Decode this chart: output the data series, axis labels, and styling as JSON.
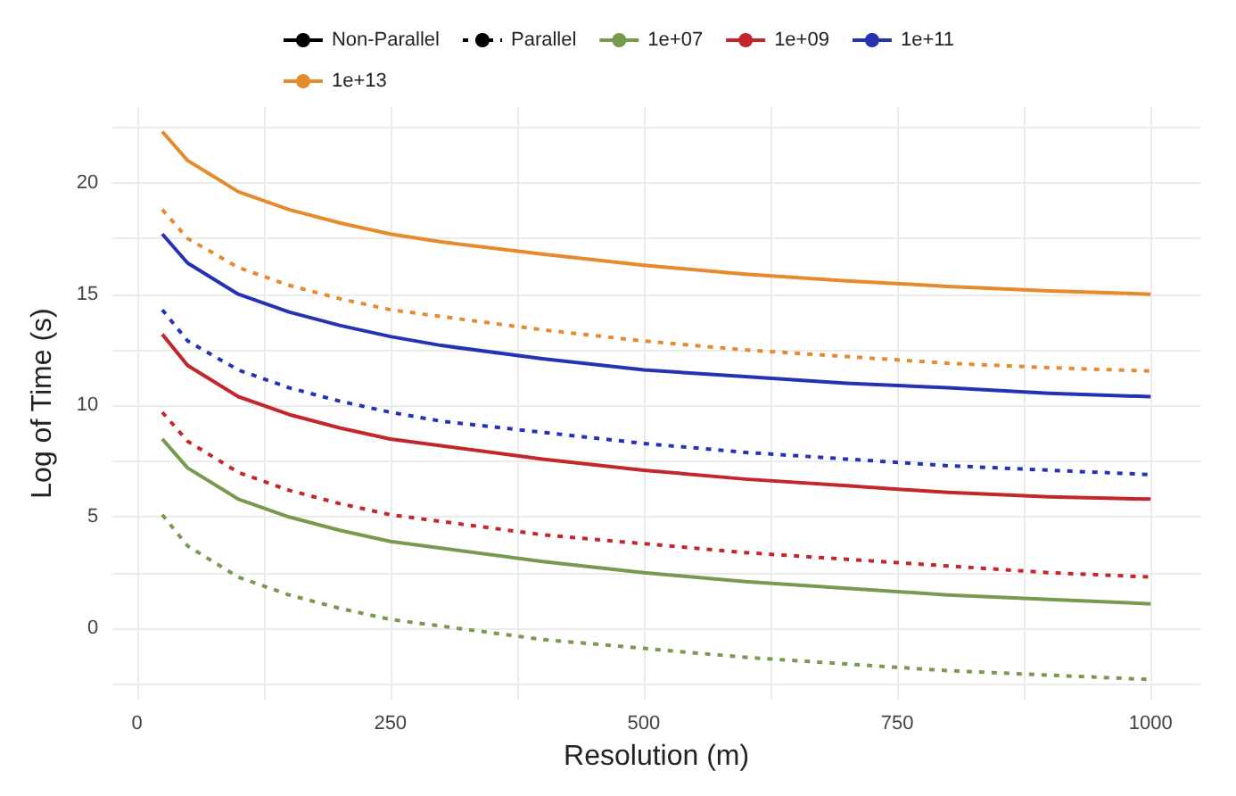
{
  "chart_data": {
    "type": "line",
    "xlabel": "Resolution (m)",
    "ylabel": "Log of Time (s)",
    "x": [
      25,
      50,
      100,
      150,
      200,
      250,
      300,
      400,
      500,
      600,
      700,
      800,
      900,
      1000
    ],
    "xlim": [
      -24,
      1049
    ],
    "xticks": [
      0,
      {
        "value": 125,
        "label": null
      },
      250,
      {
        "value": 375,
        "label": null
      },
      500,
      {
        "value": 625,
        "label": null
      },
      750,
      {
        "value": 875,
        "label": null
      },
      1000
    ],
    "ylim": [
      -3.2,
      23.4
    ],
    "yticks": [
      {
        "value": -2.5,
        "label": null
      },
      0,
      {
        "value": 2.5,
        "label": null
      },
      5,
      {
        "value": 7.5,
        "label": null
      },
      10,
      {
        "value": 12.5,
        "label": null
      },
      15,
      {
        "value": 17.5,
        "label": null
      },
      20,
      {
        "value": 22.5,
        "label": null
      }
    ],
    "grid": true,
    "legend": "top",
    "marker": "none",
    "series": [
      {
        "name": "Non-Parallel",
        "color": "#000000",
        "line_style": "solid",
        "values": [
          null,
          null,
          null,
          null,
          null,
          null,
          null,
          null,
          null,
          null,
          null,
          null,
          null,
          null
        ]
      },
      {
        "name": "Parallel",
        "color": "#000000",
        "line_style": "dotted",
        "values": [
          null,
          null,
          null,
          null,
          null,
          null,
          null,
          null,
          null,
          null,
          null,
          null,
          null,
          null
        ]
      },
      {
        "name": "1e+07",
        "color": "#789a4e",
        "line_style": "solid",
        "values": [
          8.5,
          7.2,
          5.8,
          5.0,
          4.4,
          3.9,
          3.6,
          3.0,
          2.5,
          2.1,
          1.8,
          1.5,
          1.3,
          1.1
        ]
      },
      {
        "name": "1e+09",
        "color": "#c3262b",
        "line_style": "solid",
        "values": [
          13.2,
          11.8,
          10.4,
          9.6,
          9.0,
          8.5,
          8.2,
          7.6,
          7.1,
          6.7,
          6.4,
          6.1,
          5.9,
          5.8
        ]
      },
      {
        "name": "1e+11",
        "color": "#2532b3",
        "line_style": "solid",
        "values": [
          17.7,
          16.4,
          15.0,
          14.2,
          13.6,
          13.1,
          12.7,
          12.1,
          11.6,
          11.3,
          11.0,
          10.8,
          10.55,
          10.4
        ]
      },
      {
        "name": "1e+13",
        "color": "#e68a2e",
        "line_style": "solid",
        "values": [
          22.3,
          21.0,
          19.6,
          18.8,
          18.2,
          17.7,
          17.35,
          16.8,
          16.3,
          15.9,
          15.6,
          15.35,
          15.15,
          15.0
        ]
      },
      {
        "color": "#789a4e",
        "line_style": "dotted",
        "values": [
          5.1,
          3.7,
          2.3,
          1.5,
          0.9,
          0.4,
          0.1,
          -0.5,
          -0.9,
          -1.3,
          -1.6,
          -1.9,
          -2.1,
          -2.3
        ]
      },
      {
        "color": "#c3262b",
        "line_style": "dotted",
        "values": [
          9.7,
          8.4,
          7.0,
          6.2,
          5.6,
          5.1,
          4.8,
          4.2,
          3.8,
          3.4,
          3.1,
          2.8,
          2.5,
          2.3
        ]
      },
      {
        "color": "#2532b3",
        "line_style": "dotted",
        "values": [
          14.3,
          12.9,
          11.6,
          10.8,
          10.2,
          9.7,
          9.3,
          8.8,
          8.3,
          7.9,
          7.6,
          7.3,
          7.1,
          6.9
        ]
      },
      {
        "color": "#e68a2e",
        "line_style": "dotted",
        "values": [
          18.8,
          17.5,
          16.2,
          15.4,
          14.8,
          14.3,
          14.0,
          13.4,
          12.9,
          12.5,
          12.2,
          11.9,
          11.7,
          11.55
        ]
      }
    ]
  }
}
